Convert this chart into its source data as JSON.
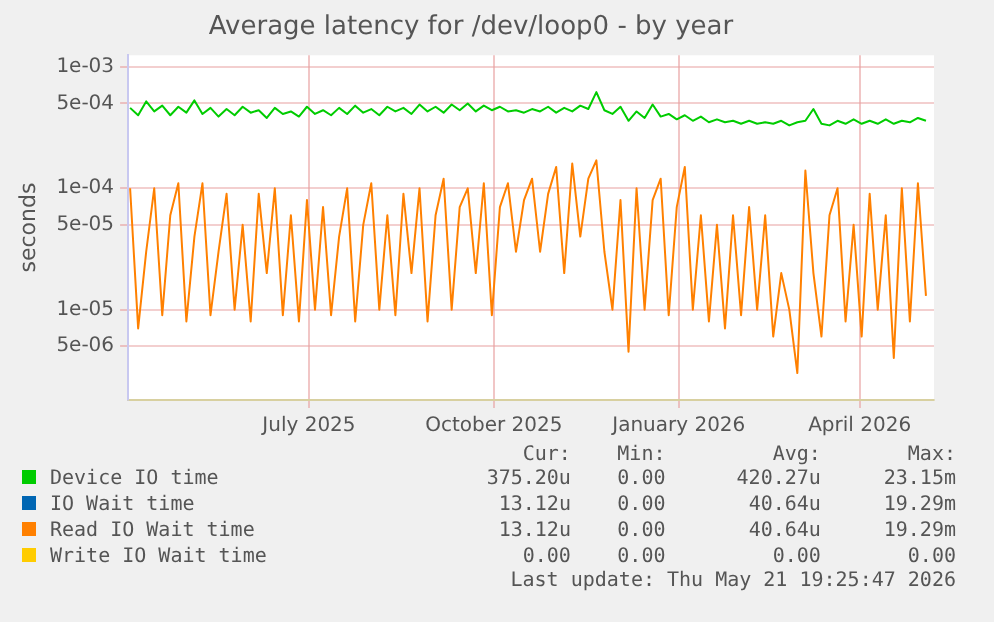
{
  "chart_data": {
    "type": "line",
    "title": "Average latency for /dev/loop0 - by year",
    "ylabel": "seconds",
    "log": "y",
    "grid": true,
    "legend": "bottom",
    "xlim": [
      "2025-04-02",
      "2026-05-08"
    ],
    "xticks": [
      {
        "value": "2025-07-01",
        "label": "July 2025"
      },
      {
        "value": "2025-10-01",
        "label": "October 2025"
      },
      {
        "value": "2026-01-01",
        "label": "January 2026"
      },
      {
        "value": "2026-04-01",
        "label": "April 2026"
      }
    ],
    "ylim": [
      1.8e-06,
      0.00125
    ],
    "yticks": [
      {
        "value": 5e-06,
        "label": "5e-06"
      },
      {
        "value": 1e-05,
        "label": "1e-05"
      },
      {
        "value": 5e-05,
        "label": "5e-05"
      },
      {
        "value": 0.0001,
        "label": "1e-04"
      },
      {
        "value": 0.0005,
        "label": "5e-04"
      },
      {
        "value": 0.001,
        "label": "1e-03"
      }
    ],
    "x": [
      "2025-04-03",
      "2025-04-07",
      "2025-04-11",
      "2025-04-15",
      "2025-04-19",
      "2025-04-23",
      "2025-04-27",
      "2025-05-01",
      "2025-05-05",
      "2025-05-09",
      "2025-05-13",
      "2025-05-17",
      "2025-05-21",
      "2025-05-25",
      "2025-05-29",
      "2025-06-02",
      "2025-06-06",
      "2025-06-10",
      "2025-06-14",
      "2025-06-18",
      "2025-06-22",
      "2025-06-26",
      "2025-06-30",
      "2025-07-04",
      "2025-07-08",
      "2025-07-12",
      "2025-07-16",
      "2025-07-20",
      "2025-07-24",
      "2025-07-28",
      "2025-08-01",
      "2025-08-05",
      "2025-08-09",
      "2025-08-13",
      "2025-08-17",
      "2025-08-21",
      "2025-08-25",
      "2025-08-29",
      "2025-09-02",
      "2025-09-06",
      "2025-09-10",
      "2025-09-14",
      "2025-09-18",
      "2025-09-22",
      "2025-09-26",
      "2025-09-30",
      "2025-10-04",
      "2025-10-08",
      "2025-10-12",
      "2025-10-16",
      "2025-10-20",
      "2025-10-24",
      "2025-10-28",
      "2025-11-01",
      "2025-11-05",
      "2025-11-09",
      "2025-11-13",
      "2025-11-17",
      "2025-11-21",
      "2025-11-25",
      "2025-11-29",
      "2025-12-03",
      "2025-12-07",
      "2025-12-11",
      "2025-12-15",
      "2025-12-19",
      "2025-12-23",
      "2025-12-27",
      "2025-12-31",
      "2026-01-04",
      "2026-01-08",
      "2026-01-12",
      "2026-01-16",
      "2026-01-20",
      "2026-01-24",
      "2026-01-28",
      "2026-02-01",
      "2026-02-05",
      "2026-02-09",
      "2026-02-13",
      "2026-02-17",
      "2026-02-21",
      "2026-02-25",
      "2026-03-01",
      "2026-03-05",
      "2026-03-09",
      "2026-03-13",
      "2026-03-17",
      "2026-03-21",
      "2026-03-25",
      "2026-03-29",
      "2026-04-02",
      "2026-04-06",
      "2026-04-10",
      "2026-04-14",
      "2026-04-18",
      "2026-04-22",
      "2026-04-26",
      "2026-04-30",
      "2026-05-04"
    ],
    "series": [
      {
        "name": "Device IO time",
        "color": "#00cc00",
        "values": [
          0.00046,
          0.0004,
          0.00052,
          0.00043,
          0.00048,
          0.0004,
          0.00047,
          0.00042,
          0.00053,
          0.00041,
          0.00046,
          0.00039,
          0.00045,
          0.0004,
          0.00047,
          0.00042,
          0.00044,
          0.00038,
          0.00046,
          0.00041,
          0.00043,
          0.00039,
          0.00047,
          0.00041,
          0.00044,
          0.0004,
          0.00046,
          0.00041,
          0.00048,
          0.00042,
          0.00045,
          0.0004,
          0.00047,
          0.00043,
          0.00046,
          0.00041,
          0.00049,
          0.00043,
          0.00047,
          0.00042,
          0.00049,
          0.00044,
          0.0005,
          0.00043,
          0.00048,
          0.00044,
          0.00047,
          0.00043,
          0.00044,
          0.00042,
          0.00045,
          0.00043,
          0.00047,
          0.00042,
          0.00046,
          0.00043,
          0.00048,
          0.00045,
          0.00062,
          0.00044,
          0.00041,
          0.00047,
          0.00036,
          0.00043,
          0.00038,
          0.00049,
          0.00039,
          0.00041,
          0.00037,
          0.0004,
          0.00036,
          0.00039,
          0.00035,
          0.00037,
          0.00035,
          0.00036,
          0.00034,
          0.00036,
          0.00034,
          0.00035,
          0.00034,
          0.00036,
          0.00033,
          0.00035,
          0.00036,
          0.00045,
          0.00034,
          0.00033,
          0.00036,
          0.00034,
          0.00037,
          0.00034,
          0.00036,
          0.00034,
          0.00037,
          0.00034,
          0.00036,
          0.00035,
          0.00038,
          0.00036
        ]
      },
      {
        "name": "IO Wait time",
        "color": "#0066b3",
        "values": [
          null,
          null,
          null,
          null,
          null,
          null,
          null,
          null,
          null,
          null,
          null,
          null,
          null,
          null,
          null,
          null,
          null,
          null,
          null,
          null,
          null,
          null,
          null,
          null,
          null,
          null,
          null,
          null,
          null,
          null,
          null,
          null,
          null,
          null,
          null,
          null,
          null,
          null,
          null,
          null,
          null,
          null,
          null,
          null,
          null,
          null,
          null,
          null,
          null,
          null,
          null,
          null,
          null,
          null,
          null,
          null,
          null,
          null,
          null,
          null,
          null,
          null,
          null,
          null,
          null,
          null,
          null,
          null,
          null,
          null,
          null,
          null,
          null,
          null,
          null,
          null,
          null,
          null,
          null,
          null,
          null,
          null,
          null,
          null,
          null,
          null,
          null,
          null,
          null,
          null,
          null,
          null,
          null,
          null,
          null,
          null,
          null,
          null,
          null,
          null
        ]
      },
      {
        "name": "Read IO Wait time",
        "color": "#ff8000",
        "values": [
          0.0001,
          7e-06,
          3e-05,
          0.0001,
          9e-06,
          6e-05,
          0.00011,
          8e-06,
          4e-05,
          0.00011,
          9e-06,
          3e-05,
          9e-05,
          1e-05,
          5e-05,
          8e-06,
          9e-05,
          2e-05,
          0.0001,
          9e-06,
          6e-05,
          8e-06,
          8e-05,
          1e-05,
          7e-05,
          9e-06,
          4e-05,
          0.0001,
          8e-06,
          5e-05,
          0.00011,
          1e-05,
          6e-05,
          9e-06,
          9e-05,
          2e-05,
          0.0001,
          8e-06,
          6e-05,
          0.00012,
          1e-05,
          7e-05,
          0.0001,
          2e-05,
          0.00011,
          9e-06,
          7e-05,
          0.00011,
          3e-05,
          8e-05,
          0.00012,
          3e-05,
          9e-05,
          0.00015,
          2e-05,
          0.00016,
          4e-05,
          0.00012,
          0.00017,
          3e-05,
          1e-05,
          8e-05,
          4.5e-06,
          0.0001,
          1e-05,
          8e-05,
          0.00012,
          9e-06,
          7e-05,
          0.00015,
          1e-05,
          6e-05,
          8e-06,
          5e-05,
          7e-06,
          6e-05,
          9e-06,
          7e-05,
          1e-05,
          6e-05,
          6e-06,
          2e-05,
          1e-05,
          3e-06,
          0.00014,
          2e-05,
          6e-06,
          6e-05,
          0.0001,
          8e-06,
          5e-05,
          6e-06,
          9e-05,
          1e-05,
          6e-05,
          4e-06,
          0.0001,
          8e-06,
          0.00011,
          1.3e-05
        ]
      },
      {
        "name": "Write IO Wait time",
        "color": "#ffcc00",
        "values": [
          null,
          null,
          null,
          null,
          null,
          null,
          null,
          null,
          null,
          null,
          null,
          null,
          null,
          null,
          null,
          null,
          null,
          null,
          null,
          null,
          null,
          null,
          null,
          null,
          null,
          null,
          null,
          null,
          null,
          null,
          null,
          null,
          null,
          null,
          null,
          null,
          null,
          null,
          null,
          null,
          null,
          null,
          null,
          null,
          null,
          null,
          null,
          null,
          null,
          null,
          null,
          null,
          null,
          null,
          null,
          null,
          null,
          null,
          null,
          null,
          null,
          null,
          null,
          null,
          null,
          null,
          null,
          null,
          null,
          null,
          null,
          null,
          null,
          null,
          null,
          null,
          null,
          null,
          null,
          null,
          null,
          null,
          null,
          null,
          null,
          null,
          null,
          null,
          null,
          null,
          null,
          null,
          null,
          null,
          null,
          null,
          null,
          null,
          null,
          null
        ]
      }
    ],
    "annotations": [
      "Cur:",
      "Min:",
      "Avg:",
      "Max:",
      "375.20u",
      "0.00",
      "420.27u",
      "23.15m",
      "13.12u",
      "0.00",
      "40.64u",
      "19.29m",
      "13.12u",
      "0.00",
      "40.64u",
      "19.29m",
      "0.00",
      "0.00",
      "0.00",
      "0.00",
      "Last update: Thu May 21 19:25:47 2026"
    ]
  }
}
